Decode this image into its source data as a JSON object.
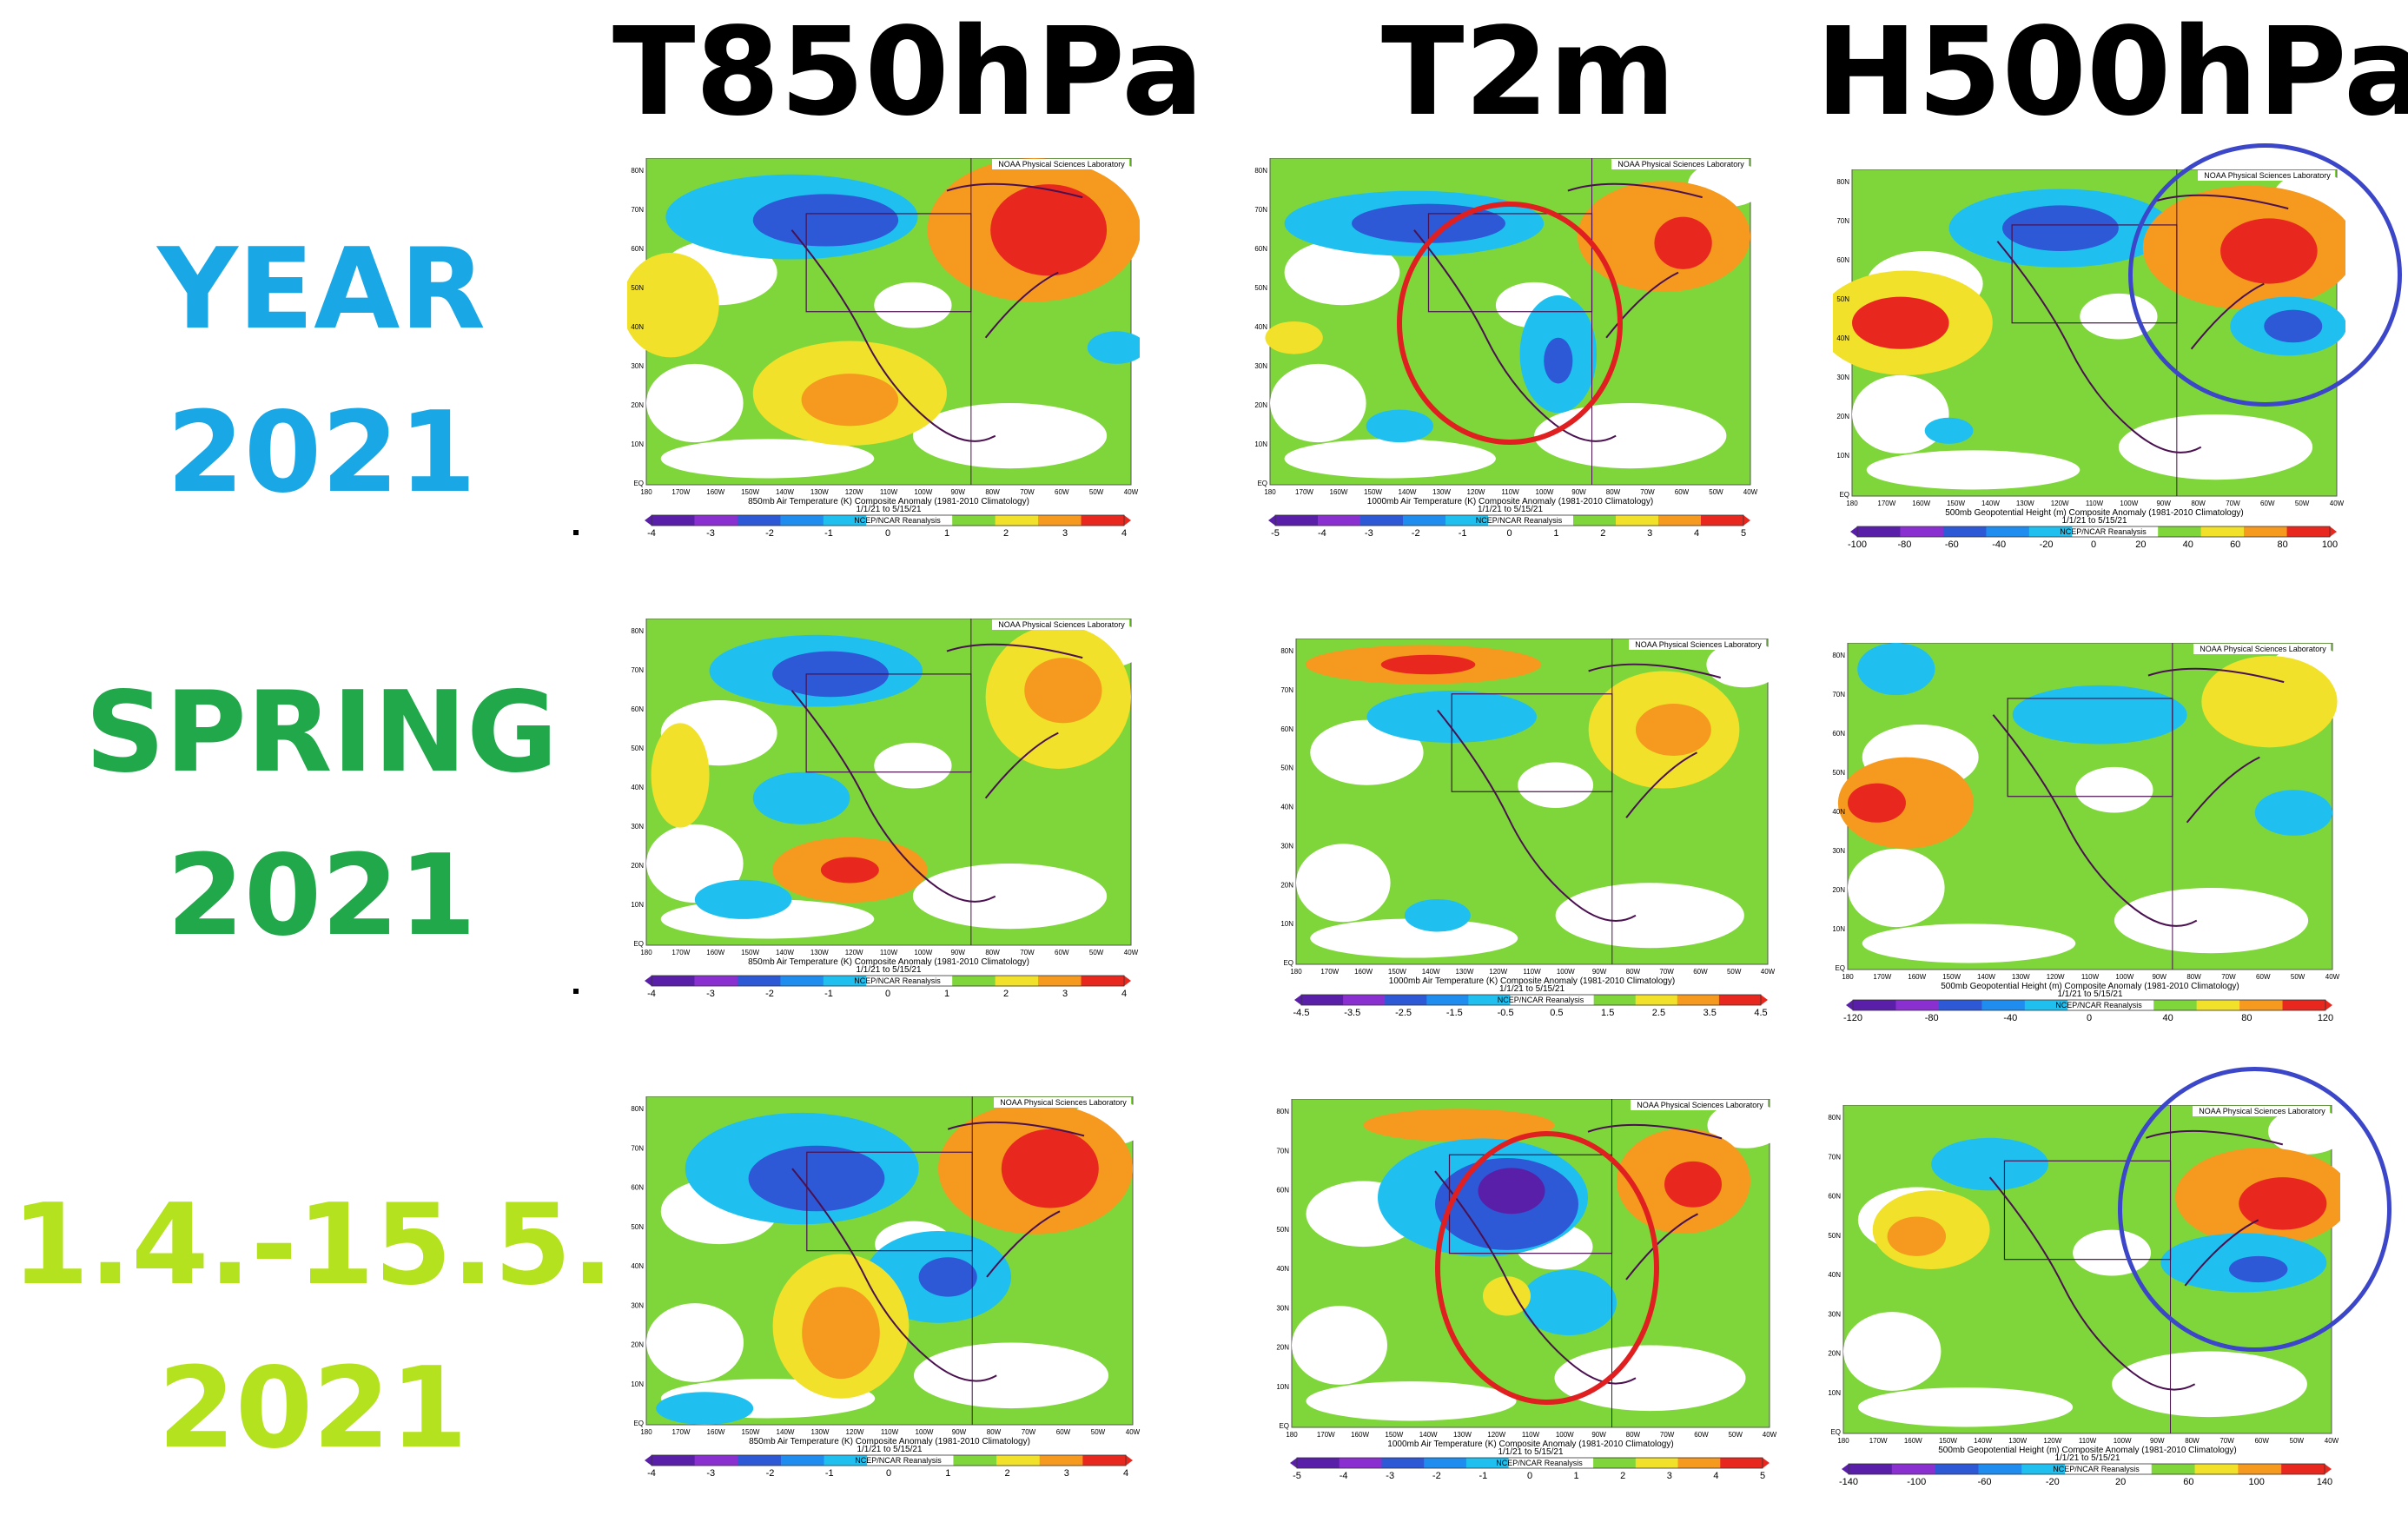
{
  "headers": [
    "T850hPa",
    "T2m",
    "H500hPa"
  ],
  "rows": [
    {
      "label_line1": "YEAR",
      "label_line2": "2021",
      "color": "#1aa7e6"
    },
    {
      "label_line1": "SPRING",
      "label_line2": "2021",
      "color": "#21a84a"
    },
    {
      "label_line1": "1.4.-15.5.",
      "label_line2": "2021",
      "color": "#b4e21e"
    }
  ],
  "map_common": {
    "lab": "NOAA Physical Sciences Laboratory",
    "lat_ticks": [
      "80N",
      "70N",
      "60N",
      "50N",
      "40N",
      "30N",
      "20N",
      "10N",
      "EQ"
    ],
    "lon_ticks": [
      "180",
      "170W",
      "160W",
      "150W",
      "140W",
      "130W",
      "120W",
      "110W",
      "100W",
      "90W",
      "80W",
      "70W",
      "60W",
      "50W",
      "40W"
    ],
    "source": "NCEP/NCAR Reanalysis",
    "date_range": "1/1/21 to 5/15/21"
  },
  "panels": [
    {
      "title": "850mb Air Temperature (K) Composite Anomaly (1981-2010 Climatology)",
      "scale": [
        "-4",
        "-3",
        "-2",
        "-1",
        "0",
        "1",
        "2",
        "3",
        "4"
      ]
    },
    {
      "title": "1000mb Air Temperature (K) Composite Anomaly (1981-2010 Climatology)",
      "scale": [
        "-5",
        "-4",
        "-3",
        "-2",
        "-1",
        "0",
        "1",
        "2",
        "3",
        "4",
        "5"
      ]
    },
    {
      "title": "500mb Geopotential Height (m) Composite Anomaly (1981-2010 Climatology)",
      "scale": [
        "-100",
        "-80",
        "-60",
        "-40",
        "-20",
        "0",
        "20",
        "40",
        "60",
        "80",
        "100"
      ]
    },
    {
      "title": "850mb Air Temperature (K) Composite Anomaly (1981-2010 Climatology)",
      "scale": [
        "-4",
        "-3",
        "-2",
        "-1",
        "0",
        "1",
        "2",
        "3",
        "4"
      ]
    },
    {
      "title": "1000mb Air Temperature (K) Composite Anomaly (1981-2010 Climatology)",
      "scale": [
        "-4.5",
        "-3.5",
        "-2.5",
        "-1.5",
        "-0.5",
        "0.5",
        "1.5",
        "2.5",
        "3.5",
        "4.5"
      ]
    },
    {
      "title": "500mb Geopotential Height (m) Composite Anomaly (1981-2010 Climatology)",
      "scale": [
        "-120",
        "-80",
        "-40",
        "0",
        "40",
        "80",
        "120"
      ]
    },
    {
      "title": "850mb Air Temperature (K) Composite Anomaly (1981-2010 Climatology)",
      "scale": [
        "-4",
        "-3",
        "-2",
        "-1",
        "0",
        "1",
        "2",
        "3",
        "4"
      ]
    },
    {
      "title": "1000mb Air Temperature (K) Composite Anomaly (1981-2010 Climatology)",
      "scale": [
        "-5",
        "-4",
        "-3",
        "-2",
        "-1",
        "0",
        "1",
        "2",
        "3",
        "4",
        "5"
      ]
    },
    {
      "title": "500mb Geopotential Height (m) Composite Anomaly (1981-2010 Climatology)",
      "scale": [
        "-140",
        "-100",
        "-60",
        "-20",
        "20",
        "60",
        "100",
        "140"
      ]
    }
  ],
  "colors": {
    "deep_purple": "#5a1fa8",
    "blue": "#2d58d6",
    "light_blue": "#1fc0f0",
    "green": "#7fd63a",
    "yellow": "#f2e12a",
    "orange": "#f59a1e",
    "red": "#e8281e",
    "red_circle": "#e02020",
    "blue_circle": "#3b46c8"
  }
}
